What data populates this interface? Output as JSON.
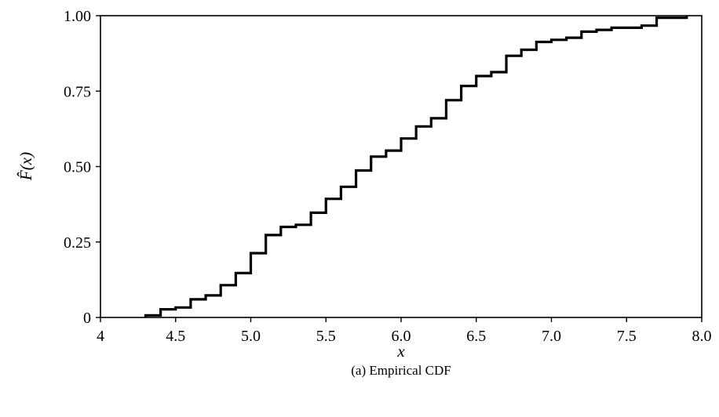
{
  "chart_data": {
    "type": "line",
    "subtype": "step",
    "title": "",
    "caption": "(a) Empirical CDF",
    "xlabel": "x",
    "ylabel": "F̂(x)",
    "xlim": [
      4,
      8
    ],
    "ylim": [
      0,
      1
    ],
    "x_ticks": [
      4,
      4.5,
      5,
      5.5,
      6,
      6.5,
      7,
      7.5,
      8
    ],
    "x_tick_labels": [
      "4",
      "4.5",
      "5.0",
      "5.5",
      "6.0",
      "6.5",
      "7.0",
      "7.5",
      "8.0"
    ],
    "y_ticks": [
      0,
      0.25,
      0.5,
      0.75,
      1
    ],
    "y_tick_labels": [
      "0",
      "0.25",
      "0.50",
      "0.75",
      "1.00"
    ],
    "grid": false,
    "legend": "none",
    "series": [
      {
        "color": "#000000",
        "x": [
          4.3,
          4.4,
          4.5,
          4.6,
          4.7,
          4.8,
          4.9,
          5.0,
          5.1,
          5.2,
          5.3,
          5.4,
          5.5,
          5.6,
          5.7,
          5.8,
          5.9,
          6.0,
          6.1,
          6.2,
          6.3,
          6.4,
          6.5,
          6.6,
          6.7,
          6.8,
          6.9,
          7.0,
          7.1,
          7.2,
          7.3,
          7.4,
          7.6,
          7.7,
          7.9
        ],
        "y": [
          0.007,
          0.027,
          0.033,
          0.06,
          0.073,
          0.107,
          0.147,
          0.213,
          0.273,
          0.3,
          0.307,
          0.347,
          0.393,
          0.433,
          0.487,
          0.533,
          0.553,
          0.593,
          0.633,
          0.66,
          0.72,
          0.767,
          0.8,
          0.813,
          0.867,
          0.887,
          0.913,
          0.92,
          0.927,
          0.947,
          0.953,
          0.96,
          0.967,
          0.993,
          1.0
        ]
      }
    ]
  }
}
